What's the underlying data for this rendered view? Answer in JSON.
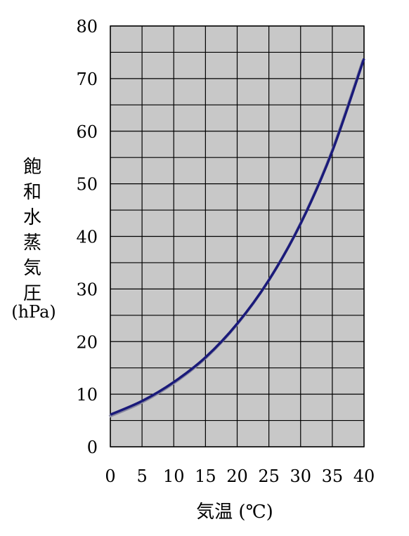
{
  "chart_data": {
    "type": "line",
    "title": "",
    "xlabel": "気温 (℃)",
    "ylabel_chars": [
      "飽",
      "和",
      "水",
      "蒸",
      "気",
      "圧"
    ],
    "ylabel_unit": "(hPa)",
    "xlim": [
      0,
      40
    ],
    "ylim": [
      0,
      80
    ],
    "x_ticks": [
      0,
      5,
      10,
      15,
      20,
      25,
      30,
      35,
      40
    ],
    "y_ticks": [
      0,
      10,
      20,
      30,
      40,
      50,
      60,
      70,
      80
    ],
    "x_grid_step": 5,
    "y_grid_step": 5,
    "grid": true,
    "series": [
      {
        "x": [
          0,
          5,
          10,
          15,
          20,
          25,
          30,
          35,
          40
        ],
        "y": [
          6.1,
          8.7,
          12.3,
          17.0,
          23.4,
          31.7,
          42.4,
          56.2,
          73.8
        ]
      }
    ],
    "colors": {
      "plot_background": "#c8c8c8",
      "grid": "#000000",
      "line": "#1a1a7a",
      "line_shadow": "#8a8aa0"
    }
  }
}
